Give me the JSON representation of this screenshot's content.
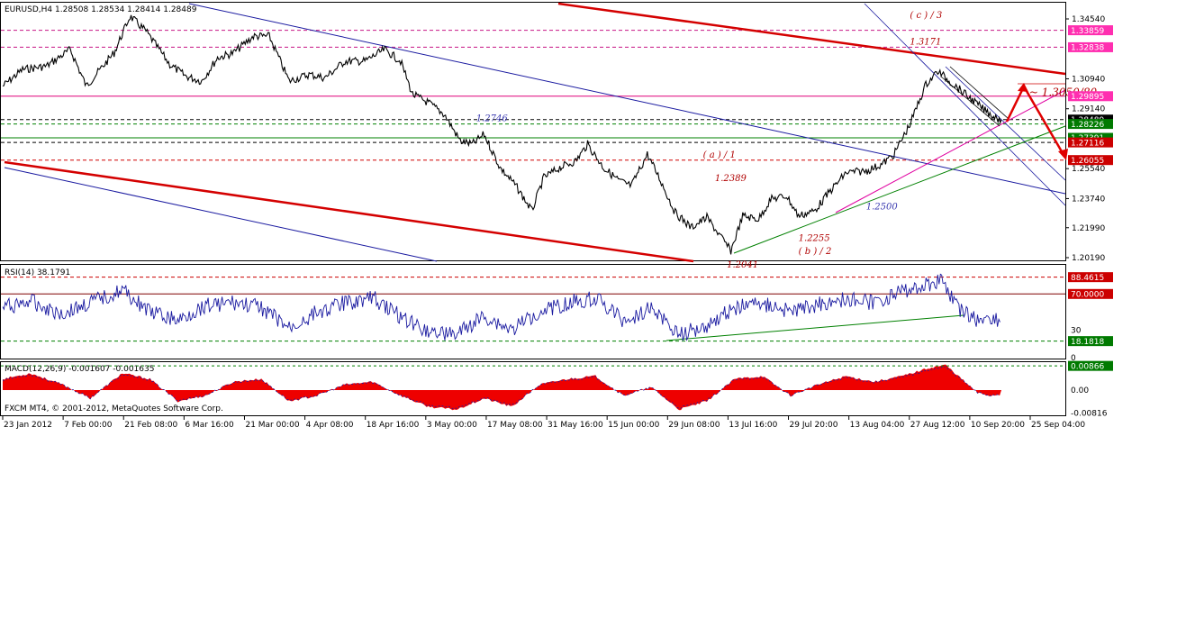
{
  "chart_data": {
    "type": "line",
    "symbol": "EURUSD,H4",
    "ohlc": "1.28508 1.28534 1.28414 1.28489",
    "copyright": "FXCM MT4, © 2001-2012, MetaQuotes Software Corp.",
    "price_ticks": [
      "1.34540",
      "1.30940",
      "1.29140",
      "1.25540",
      "1.23740",
      "1.21990",
      "1.20190"
    ],
    "price_levels": [
      {
        "label": "1.33859",
        "value": 1.33859,
        "box_color": "#ff2fb0",
        "text_color": "#ffffff",
        "line_color": "#c71585",
        "dash": true
      },
      {
        "label": "1.32838",
        "value": 1.32838,
        "box_color": "#ff2fb0",
        "text_color": "#ffffff",
        "line_color": "#c71585",
        "dash": true
      },
      {
        "label": "1.29895",
        "value": 1.29895,
        "box_color": "#ff2fb0",
        "text_color": "#ffffff",
        "line_color": "#e0007a",
        "dash": false
      },
      {
        "label": "1.28489",
        "value": 1.28489,
        "box_color": "#000000",
        "text_color": "#ffffff",
        "line_color": "#000000",
        "dash": true
      },
      {
        "label": "1.28226",
        "value": 1.28226,
        "box_color": "#007a00",
        "text_color": "#ffffff",
        "line_color": "#008000",
        "dash": true
      },
      {
        "label": "1.27391",
        "value": 1.27391,
        "box_color": "#007a00",
        "text_color": "#ffffff",
        "line_color": "#008000",
        "dash": false
      },
      {
        "label": "1.27116",
        "value": 1.27116,
        "box_color": "#cc0000",
        "text_color": "#ffffff",
        "line_color": "#000000",
        "dash": true
      },
      {
        "label": "1.26055",
        "value": 1.26055,
        "box_color": "#cc0000",
        "text_color": "#ffffff",
        "line_color": "#d00000",
        "dash": true
      }
    ],
    "annotations": [
      {
        "text": "( c ) / 3",
        "x": "07 Sep",
        "y": 1.346,
        "color": "#b00000"
      },
      {
        "text": "1.3171",
        "x": "07 Sep",
        "y": 1.33,
        "color": "#b00000"
      },
      {
        "text": "1.2746",
        "x": "21 May",
        "y": 1.284,
        "color": "#3a3ab0"
      },
      {
        "text": "( a ) / 1",
        "x": "17 Jul",
        "y": 1.262,
        "color": "#b00000"
      },
      {
        "text": "1.2389",
        "x": "20 Jul",
        "y": 1.248,
        "color": "#b00000"
      },
      {
        "text": "1.2500",
        "x": "27 Aug",
        "y": 1.231,
        "color": "#3a3ab0"
      },
      {
        "text": "1.2255",
        "x": "10 Aug",
        "y": 1.212,
        "color": "#b00000"
      },
      {
        "text": "( b ) / 2",
        "x": "10 Aug",
        "y": 1.204,
        "color": "#b00000"
      },
      {
        "text": "1.2041",
        "x": "23 Jul",
        "y": 1.196,
        "color": "#b00000"
      },
      {
        "text": "~ 1.3050/80",
        "x": "07 Oct",
        "y": 1.299,
        "color": "#b00000"
      }
    ],
    "time_ticks": [
      "23 Jan 2012",
      "7 Feb 00:00",
      "21 Feb 08:00",
      "6 Mar 16:00",
      "21 Mar 00:00",
      "4 Apr 08:00",
      "18 Apr 16:00",
      "3 May 00:00",
      "17 May 08:00",
      "31 May 16:00",
      "15 Jun 00:00",
      "29 Jun 08:00",
      "13 Jul 16:00",
      "29 Jul 20:00",
      "13 Aug 04:00",
      "27 Aug 12:00",
      "10 Sep 20:00",
      "25 Sep 04:00"
    ],
    "price_path": [
      {
        "x": "23 Jan",
        "y": 1.305
      },
      {
        "x": "28 Jan",
        "y": 1.315
      },
      {
        "x": "03 Feb",
        "y": 1.317
      },
      {
        "x": "09 Feb",
        "y": 1.327
      },
      {
        "x": "13 Feb",
        "y": 1.305
      },
      {
        "x": "20 Feb",
        "y": 1.325
      },
      {
        "x": "24 Feb",
        "y": 1.347
      },
      {
        "x": "28 Feb",
        "y": 1.338
      },
      {
        "x": "05 Mar",
        "y": 1.318
      },
      {
        "x": "09 Mar",
        "y": 1.311
      },
      {
        "x": "13 Mar",
        "y": 1.308
      },
      {
        "x": "17 Mar",
        "y": 1.322
      },
      {
        "x": "21 Mar",
        "y": 1.325
      },
      {
        "x": "26 Mar",
        "y": 1.335
      },
      {
        "x": "30 Mar",
        "y": 1.335
      },
      {
        "x": "04 Apr",
        "y": 1.308
      },
      {
        "x": "09 Apr",
        "y": 1.312
      },
      {
        "x": "13 Apr",
        "y": 1.31
      },
      {
        "x": "18 Apr",
        "y": 1.32
      },
      {
        "x": "23 Apr",
        "y": 1.32
      },
      {
        "x": "28 Apr",
        "y": 1.327
      },
      {
        "x": "02 May",
        "y": 1.32
      },
      {
        "x": "05 May",
        "y": 1.3
      },
      {
        "x": "09 May",
        "y": 1.295
      },
      {
        "x": "13 May",
        "y": 1.288
      },
      {
        "x": "17 May",
        "y": 1.272
      },
      {
        "x": "20 May",
        "y": 1.27
      },
      {
        "x": "23 May",
        "y": 1.276
      },
      {
        "x": "27 May",
        "y": 1.256
      },
      {
        "x": "31 May",
        "y": 1.245
      },
      {
        "x": "04 Jun",
        "y": 1.23
      },
      {
        "x": "07 Jun",
        "y": 1.25
      },
      {
        "x": "11 Jun",
        "y": 1.256
      },
      {
        "x": "15 Jun",
        "y": 1.26
      },
      {
        "x": "18 Jun",
        "y": 1.27
      },
      {
        "x": "22 Jun",
        "y": 1.256
      },
      {
        "x": "26 Jun",
        "y": 1.248
      },
      {
        "x": "29 Jun",
        "y": 1.245
      },
      {
        "x": "03 Jul",
        "y": 1.264
      },
      {
        "x": "06 Jul",
        "y": 1.25
      },
      {
        "x": "10 Jul",
        "y": 1.229
      },
      {
        "x": "14 Jul",
        "y": 1.22
      },
      {
        "x": "18 Jul",
        "y": 1.226
      },
      {
        "x": "24 Jul",
        "y": 1.206
      },
      {
        "x": "27 Jul",
        "y": 1.227
      },
      {
        "x": "31 Jul",
        "y": 1.225
      },
      {
        "x": "03 Aug",
        "y": 1.237
      },
      {
        "x": "07 Aug",
        "y": 1.239
      },
      {
        "x": "10 Aug",
        "y": 1.227
      },
      {
        "x": "14 Aug",
        "y": 1.23
      },
      {
        "x": "18 Aug",
        "y": 1.242
      },
      {
        "x": "22 Aug",
        "y": 1.253
      },
      {
        "x": "27 Aug",
        "y": 1.254
      },
      {
        "x": "31 Aug",
        "y": 1.258
      },
      {
        "x": "03 Sep",
        "y": 1.264
      },
      {
        "x": "07 Sep",
        "y": 1.282
      },
      {
        "x": "11 Sep",
        "y": 1.306
      },
      {
        "x": "14 Sep",
        "y": 1.314
      },
      {
        "x": "18 Sep",
        "y": 1.306
      },
      {
        "x": "21 Sep",
        "y": 1.3
      },
      {
        "x": "25 Sep",
        "y": 1.292
      },
      {
        "x": "28 Sep",
        "y": 1.287
      },
      {
        "x": "30 Sep",
        "y": 1.2849
      }
    ],
    "rsi": {
      "label": "RSI(14) 38.1791",
      "levels": [
        {
          "label": "88.4615",
          "value": 88.4615,
          "box_color": "#cc0000",
          "line_color": "#cc0000",
          "dash": true
        },
        {
          "label": "70.0000",
          "value": 70,
          "box_color": "#cc0000",
          "line_color": "#800000",
          "dash": false
        },
        {
          "label": "18.1818",
          "value": 18.1818,
          "box_color": "#007a00",
          "line_color": "#008000",
          "dash": true
        }
      ],
      "ticks": [
        "30",
        "0"
      ],
      "path": [
        {
          "x": "23 Jan",
          "y": 55
        },
        {
          "x": "30 Jan",
          "y": 62
        },
        {
          "x": "07 Feb",
          "y": 48
        },
        {
          "x": "14 Feb",
          "y": 60
        },
        {
          "x": "22 Feb",
          "y": 74
        },
        {
          "x": "29 Feb",
          "y": 50
        },
        {
          "x": "07 Mar",
          "y": 40
        },
        {
          "x": "14 Mar",
          "y": 58
        },
        {
          "x": "21 Mar",
          "y": 60
        },
        {
          "x": "28 Mar",
          "y": 55
        },
        {
          "x": "04 Apr",
          "y": 32
        },
        {
          "x": "11 Apr",
          "y": 50
        },
        {
          "x": "18 Apr",
          "y": 60
        },
        {
          "x": "25 Apr",
          "y": 66
        },
        {
          "x": "02 May",
          "y": 45
        },
        {
          "x": "09 May",
          "y": 30
        },
        {
          "x": "16 May",
          "y": 25
        },
        {
          "x": "23 May",
          "y": 45
        },
        {
          "x": "30 May",
          "y": 30
        },
        {
          "x": "06 Jun",
          "y": 52
        },
        {
          "x": "13 Jun",
          "y": 60
        },
        {
          "x": "20 Jun",
          "y": 66
        },
        {
          "x": "27 Jun",
          "y": 40
        },
        {
          "x": "04 Jul",
          "y": 55
        },
        {
          "x": "11 Jul",
          "y": 25
        },
        {
          "x": "18 Jul",
          "y": 35
        },
        {
          "x": "25 Jul",
          "y": 55
        },
        {
          "x": "01 Aug",
          "y": 60
        },
        {
          "x": "08 Aug",
          "y": 50
        },
        {
          "x": "15 Aug",
          "y": 58
        },
        {
          "x": "22 Aug",
          "y": 65
        },
        {
          "x": "29 Aug",
          "y": 60
        },
        {
          "x": "05 Sep",
          "y": 72
        },
        {
          "x": "12 Sep",
          "y": 80
        },
        {
          "x": "15 Sep",
          "y": 86
        },
        {
          "x": "19 Sep",
          "y": 55
        },
        {
          "x": "24 Sep",
          "y": 40
        },
        {
          "x": "27 Sep",
          "y": 45
        },
        {
          "x": "30 Sep",
          "y": 38
        }
      ]
    },
    "macd": {
      "label": "MACD(12,26,9) -0.001607 -0.001635",
      "ticks": [
        {
          "label": "0.00866",
          "value": 0.00866,
          "box_color": "#007a00"
        },
        {
          "label": "0.00",
          "value": 0
        },
        {
          "label": "-0.00816",
          "value": -0.00816
        }
      ],
      "histogram": [
        {
          "x": "23 Jan",
          "y": 0.004
        },
        {
          "x": "30 Jan",
          "y": 0.006
        },
        {
          "x": "07 Feb",
          "y": 0.002
        },
        {
          "x": "14 Feb",
          "y": -0.003
        },
        {
          "x": "22 Feb",
          "y": 0.006
        },
        {
          "x": "29 Feb",
          "y": 0.004
        },
        {
          "x": "07 Mar",
          "y": -0.004
        },
        {
          "x": "14 Mar",
          "y": -0.002
        },
        {
          "x": "21 Mar",
          "y": 0.003
        },
        {
          "x": "28 Mar",
          "y": 0.004
        },
        {
          "x": "04 Apr",
          "y": -0.004
        },
        {
          "x": "11 Apr",
          "y": -0.002
        },
        {
          "x": "18 Apr",
          "y": 0.002
        },
        {
          "x": "25 Apr",
          "y": 0.003
        },
        {
          "x": "02 May",
          "y": -0.002
        },
        {
          "x": "09 May",
          "y": -0.006
        },
        {
          "x": "16 May",
          "y": -0.007
        },
        {
          "x": "23 May",
          "y": -0.003
        },
        {
          "x": "30 May",
          "y": -0.006
        },
        {
          "x": "06 Jun",
          "y": 0.002
        },
        {
          "x": "13 Jun",
          "y": 0.004
        },
        {
          "x": "20 Jun",
          "y": 0.005
        },
        {
          "x": "27 Jun",
          "y": -0.002
        },
        {
          "x": "04 Jul",
          "y": 0.001
        },
        {
          "x": "11 Jul",
          "y": -0.007
        },
        {
          "x": "18 Jul",
          "y": -0.004
        },
        {
          "x": "25 Jul",
          "y": 0.004
        },
        {
          "x": "01 Aug",
          "y": 0.005
        },
        {
          "x": "08 Aug",
          "y": -0.002
        },
        {
          "x": "15 Aug",
          "y": 0.002
        },
        {
          "x": "22 Aug",
          "y": 0.005
        },
        {
          "x": "29 Aug",
          "y": 0.003
        },
        {
          "x": "05 Sep",
          "y": 0.005
        },
        {
          "x": "12 Sep",
          "y": 0.008
        },
        {
          "x": "16 Sep",
          "y": 0.009
        },
        {
          "x": "20 Sep",
          "y": 0.004
        },
        {
          "x": "24 Sep",
          "y": -0.001
        },
        {
          "x": "27 Sep",
          "y": -0.002
        },
        {
          "x": "30 Sep",
          "y": -0.0016
        }
      ]
    }
  }
}
